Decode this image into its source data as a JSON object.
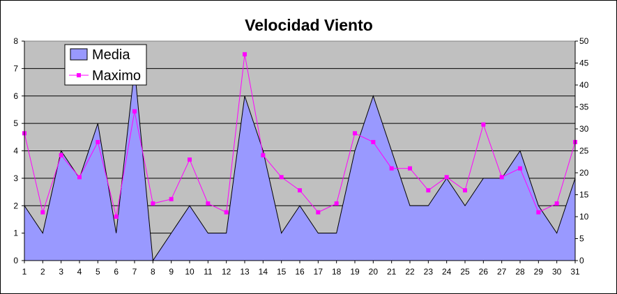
{
  "chart_data": {
    "type": "area",
    "title": "Velocidad Viento",
    "categories": [
      "1",
      "2",
      "3",
      "4",
      "5",
      "6",
      "7",
      "8",
      "9",
      "10",
      "11",
      "12",
      "13",
      "14",
      "15",
      "16",
      "17",
      "18",
      "19",
      "20",
      "21",
      "22",
      "23",
      "24",
      "25",
      "26",
      "27",
      "28",
      "29",
      "30",
      "31"
    ],
    "series": [
      {
        "name": "Media",
        "type": "area",
        "axis": "left",
        "color": "#9999ff",
        "values": [
          2,
          1,
          4,
          3,
          5,
          1,
          7,
          0,
          1,
          2,
          1,
          1,
          6,
          4,
          1,
          2,
          1,
          1,
          4,
          6,
          4,
          2,
          2,
          3,
          2,
          3,
          3,
          4,
          2,
          1,
          3
        ]
      },
      {
        "name": "Maximo",
        "type": "line",
        "axis": "right",
        "color": "#ff00ff",
        "values": [
          29,
          11,
          24,
          19,
          27,
          10,
          34,
          13,
          14,
          23,
          13,
          11,
          47,
          24,
          19,
          16,
          11,
          13,
          29,
          27,
          21,
          21,
          16,
          19,
          16,
          31,
          19,
          21,
          11,
          13,
          27
        ]
      }
    ],
    "y_left": {
      "min": 0,
      "max": 8,
      "ticks": [
        "0",
        "1",
        "2",
        "3",
        "4",
        "5",
        "6",
        "7",
        "8"
      ]
    },
    "y_right": {
      "min": 0,
      "max": 50,
      "ticks": [
        "0",
        "5",
        "10",
        "15",
        "20",
        "25",
        "30",
        "35",
        "40",
        "45",
        "50"
      ]
    },
    "grid": true,
    "legend_position": "top-left",
    "plot_background": "#c0c0c0"
  }
}
